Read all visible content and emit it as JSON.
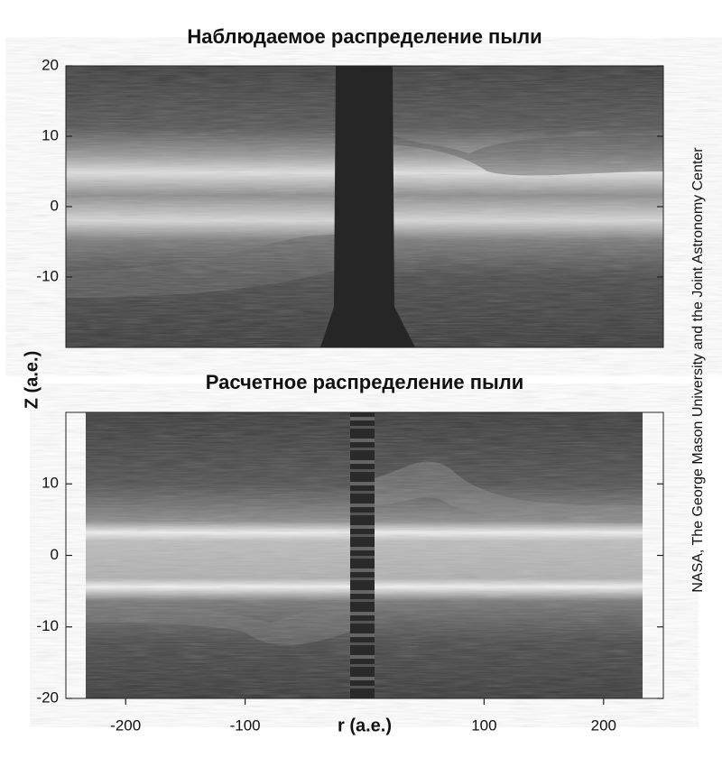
{
  "chart_data": [
    {
      "type": "heatmap",
      "title": "Наблюдаемое распределение пыли",
      "ylabel": "Z (а.е.)",
      "ylim": [
        -20,
        20
      ],
      "yticks": [
        -10,
        0,
        10,
        20
      ]
    },
    {
      "type": "heatmap",
      "title": "Расчетное распределение пыли",
      "xlabel": "r (а.е.)",
      "xlim": [
        -250,
        250
      ],
      "xticks": [
        -200,
        -100,
        100,
        200
      ],
      "ylim": [
        -20,
        20
      ],
      "yticks": [
        -20,
        -10,
        0,
        10
      ]
    }
  ],
  "credit": "NASA, The George Mason University and the Joint Astronomy Center"
}
